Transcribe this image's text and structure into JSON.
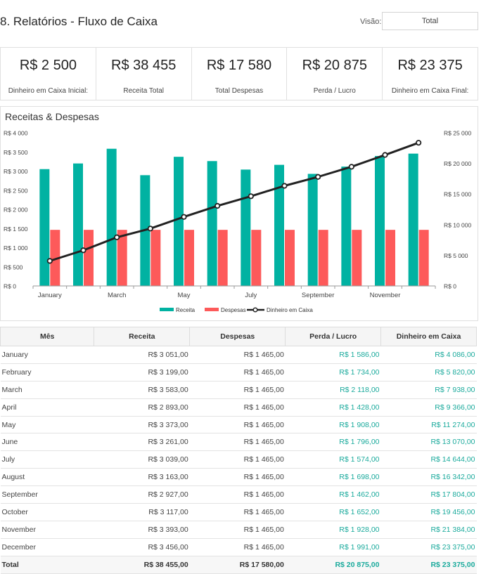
{
  "header": {
    "title": "8. Relatórios - Fluxo de Caixa",
    "view_label": "Visão:",
    "view_value": "Total"
  },
  "kpis": [
    {
      "value": "R$ 2 500",
      "label": "Dinheiro em Caixa Inicial:"
    },
    {
      "value": "R$ 38 455",
      "label": "Receita Total"
    },
    {
      "value": "R$ 17 580",
      "label": "Total  Despesas"
    },
    {
      "value": "R$ 20 875",
      "label": "Perda / Lucro"
    },
    {
      "value": "R$ 23 375",
      "label": "Dinheiro em Caixa Final:"
    }
  ],
  "chart_data": {
    "type": "bar",
    "title": "Receitas & Despesas",
    "categories": [
      "January",
      "February",
      "March",
      "April",
      "May",
      "June",
      "July",
      "August",
      "September",
      "October",
      "November",
      "December"
    ],
    "x_tick_labels": [
      "January",
      "March",
      "May",
      "July",
      "September",
      "November"
    ],
    "series": [
      {
        "name": "Receita",
        "type": "bar",
        "axis": "left",
        "color": "#01b2a2",
        "values": [
          3051,
          3199,
          3583,
          2893,
          3373,
          3261,
          3039,
          3163,
          2927,
          3117,
          3393,
          3456
        ]
      },
      {
        "name": "Despesas",
        "type": "bar",
        "axis": "left",
        "color": "#fd5a5a",
        "values": [
          1465,
          1465,
          1465,
          1465,
          1465,
          1465,
          1465,
          1465,
          1465,
          1465,
          1465,
          1465
        ]
      },
      {
        "name": "Dinheiro em Caixa",
        "type": "line",
        "axis": "right",
        "color": "#222222",
        "values": [
          4086,
          5820,
          7938,
          9366,
          11274,
          13070,
          14644,
          16342,
          17804,
          19456,
          21384,
          23375
        ]
      }
    ],
    "y_left": {
      "ylim": [
        0,
        4000
      ],
      "ticks": [
        0,
        500,
        1000,
        1500,
        2000,
        2500,
        3000,
        3500,
        4000
      ],
      "tick_labels": [
        "R$ 0",
        "R$ 500",
        "R$ 1 000",
        "R$ 1 500",
        "R$ 2 000",
        "R$ 2 500",
        "R$ 3 000",
        "R$ 3 500",
        "R$ 4 000"
      ]
    },
    "y_right": {
      "ylim": [
        0,
        25000
      ],
      "ticks": [
        0,
        5000,
        10000,
        15000,
        20000,
        25000
      ],
      "tick_labels": [
        "R$ 0",
        "R$ 5 000",
        "R$ 10 000",
        "R$ 15 000",
        "R$ 20 000",
        "R$ 25 000"
      ]
    },
    "legend_position": "bottom"
  },
  "table": {
    "columns": [
      "Mês",
      "Receita",
      "Despesas",
      "Perda / Lucro",
      "Dinheiro em Caixa"
    ],
    "rows": [
      [
        "January",
        "R$ 3 051,00",
        "R$ 1 465,00",
        "R$ 1 586,00",
        "R$ 4 086,00"
      ],
      [
        "February",
        "R$ 3 199,00",
        "R$ 1 465,00",
        "R$ 1 734,00",
        "R$ 5 820,00"
      ],
      [
        "March",
        "R$ 3 583,00",
        "R$ 1 465,00",
        "R$ 2 118,00",
        "R$ 7 938,00"
      ],
      [
        "April",
        "R$ 2 893,00",
        "R$ 1 465,00",
        "R$ 1 428,00",
        "R$ 9 366,00"
      ],
      [
        "May",
        "R$ 3 373,00",
        "R$ 1 465,00",
        "R$ 1 908,00",
        "R$ 11 274,00"
      ],
      [
        "June",
        "R$ 3 261,00",
        "R$ 1 465,00",
        "R$ 1 796,00",
        "R$ 13 070,00"
      ],
      [
        "July",
        "R$ 3 039,00",
        "R$ 1 465,00",
        "R$ 1 574,00",
        "R$ 14 644,00"
      ],
      [
        "August",
        "R$ 3 163,00",
        "R$ 1 465,00",
        "R$ 1 698,00",
        "R$ 16 342,00"
      ],
      [
        "September",
        "R$ 2 927,00",
        "R$ 1 465,00",
        "R$ 1 462,00",
        "R$ 17 804,00"
      ],
      [
        "October",
        "R$ 3 117,00",
        "R$ 1 465,00",
        "R$ 1 652,00",
        "R$ 19 456,00"
      ],
      [
        "November",
        "R$ 3 393,00",
        "R$ 1 465,00",
        "R$ 1 928,00",
        "R$ 21 384,00"
      ],
      [
        "December",
        "R$ 3 456,00",
        "R$ 1 465,00",
        "R$ 1 991,00",
        "R$ 23 375,00"
      ]
    ],
    "total": [
      "Total",
      "R$ 38 455,00",
      "R$ 17 580,00",
      "R$ 20 875,00",
      "R$ 23 375,00"
    ]
  }
}
